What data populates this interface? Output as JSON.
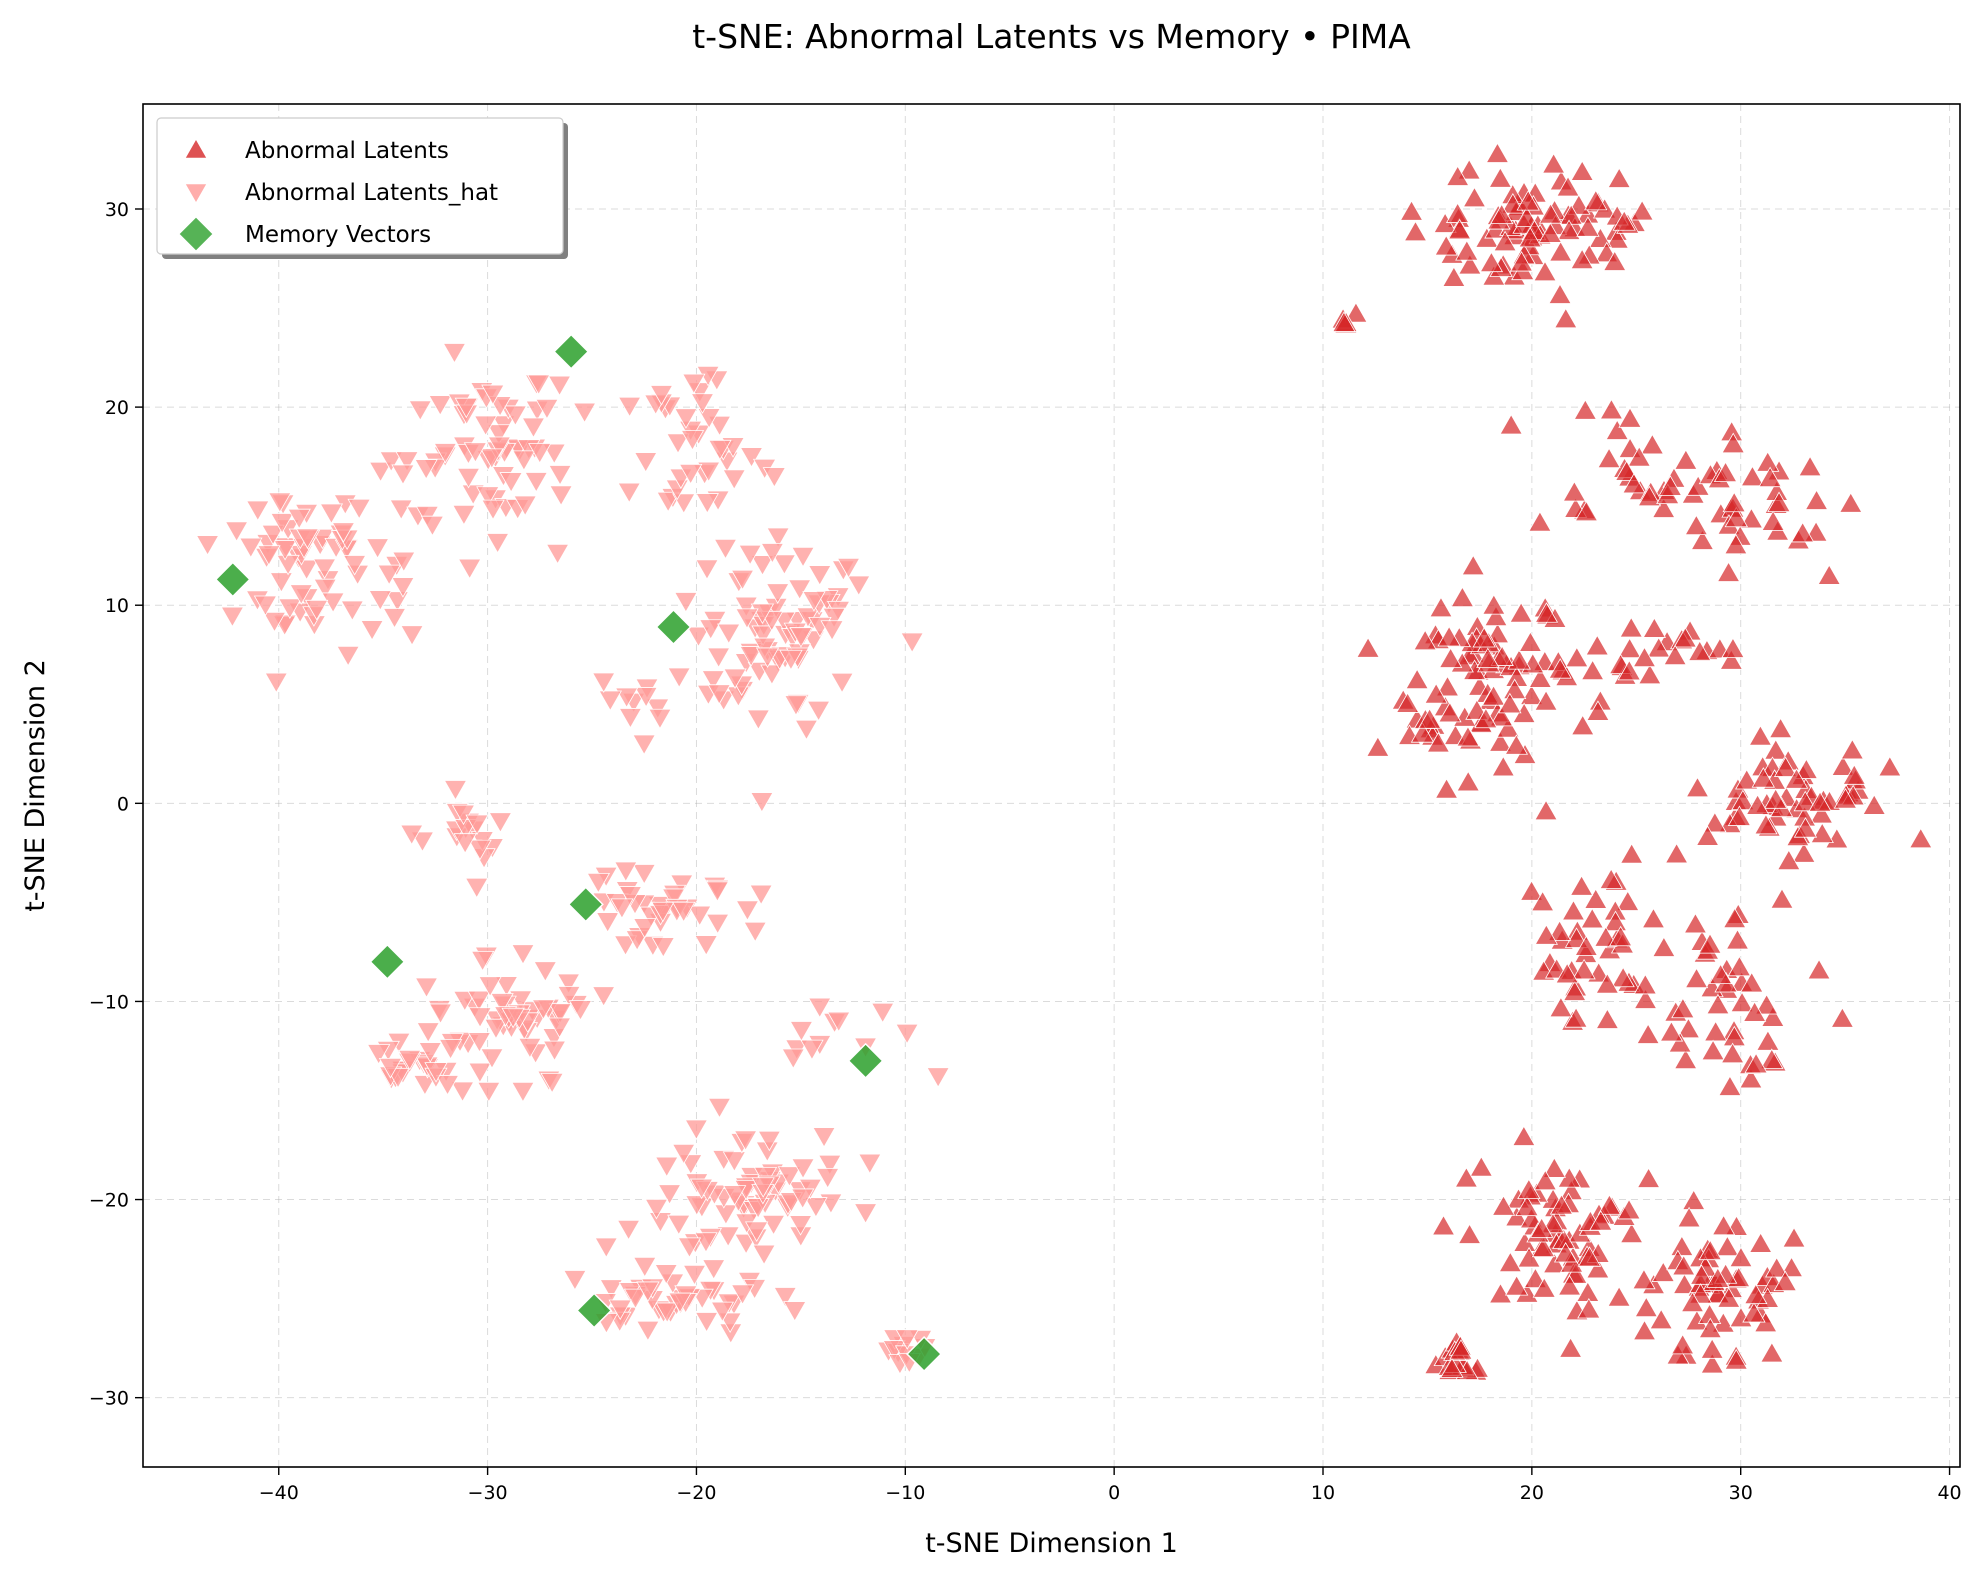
{
  "chart_data": {
    "type": "scatter",
    "title": "t-SNE: Abnormal Latents vs Memory • PIMA",
    "xlabel": "t-SNE Dimension 1",
    "ylabel": "t-SNE Dimension 2",
    "xlim": [
      -46.5,
      40.5
    ],
    "ylim": [
      -33.5,
      35.3
    ],
    "xticks": [
      -40,
      -30,
      -20,
      -10,
      0,
      10,
      20,
      30,
      40
    ],
    "yticks": [
      -30,
      -20,
      -10,
      0,
      10,
      20,
      30
    ],
    "grid": true,
    "legend_position": "upper-left",
    "series": [
      {
        "name": "Abnormal Latents",
        "marker": "triangle-up",
        "color": "#d62728",
        "clusters": [
          {
            "center": [
              20,
              29
            ],
            "spread": [
              3.5,
              1.8
            ],
            "count": 90
          },
          {
            "center": [
              11,
              24.5
            ],
            "spread": [
              0.6,
              0.6
            ],
            "count": 5
          },
          {
            "center": [
              24.5,
              17
            ],
            "spread": [
              3.0,
              2.5
            ],
            "count": 28
          },
          {
            "center": [
              31,
              15
            ],
            "spread": [
              2.5,
              2.5
            ],
            "count": 35
          },
          {
            "center": [
              18,
              6
            ],
            "spread": [
              3.0,
              3.2
            ],
            "count": 95
          },
          {
            "center": [
              26,
              7.5
            ],
            "spread": [
              3.0,
              1.2
            ],
            "count": 22
          },
          {
            "center": [
              33,
              0
            ],
            "spread": [
              3.0,
              2.0
            ],
            "count": 60
          },
          {
            "center": [
              23,
              -7
            ],
            "spread": [
              2.5,
              2.5
            ],
            "count": 45
          },
          {
            "center": [
              29,
              -10
            ],
            "spread": [
              2.5,
              3.0
            ],
            "count": 45
          },
          {
            "center": [
              21,
              -22
            ],
            "spread": [
              2.5,
              2.8
            ],
            "count": 70
          },
          {
            "center": [
              28.5,
              -24
            ],
            "spread": [
              2.8,
              2.8
            ],
            "count": 65
          },
          {
            "center": [
              16,
              -28
            ],
            "spread": [
              1.0,
              1.3
            ],
            "count": 18
          }
        ]
      },
      {
        "name": "Abnormal Latents_hat",
        "marker": "triangle-down",
        "color": "#ff9896",
        "clusters": [
          {
            "center": [
              -38,
              12
            ],
            "spread": [
              3.0,
              3.0
            ],
            "count": 75
          },
          {
            "center": [
              -30,
              18
            ],
            "spread": [
              3.0,
              2.8
            ],
            "count": 65
          },
          {
            "center": [
              -20,
              18
            ],
            "spread": [
              2.5,
              2.5
            ],
            "count": 35
          },
          {
            "center": [
              -16,
              9
            ],
            "spread": [
              2.8,
              3.5
            ],
            "count": 85
          },
          {
            "center": [
              -22,
              5
            ],
            "spread": [
              2.0,
              1.5
            ],
            "count": 12
          },
          {
            "center": [
              -31,
              -1
            ],
            "spread": [
              1.5,
              1.0
            ],
            "count": 18
          },
          {
            "center": [
              -22,
              -5
            ],
            "spread": [
              3.0,
              1.3
            ],
            "count": 40
          },
          {
            "center": [
              -29,
              -11
            ],
            "spread": [
              3.2,
              2.0
            ],
            "count": 60
          },
          {
            "center": [
              -33.5,
              -13.5
            ],
            "spread": [
              1.5,
              0.7
            ],
            "count": 22
          },
          {
            "center": [
              -17.5,
              -20
            ],
            "spread": [
              3.5,
              2.2
            ],
            "count": 75
          },
          {
            "center": [
              -21,
              -25
            ],
            "spread": [
              3.0,
              1.0
            ],
            "count": 45
          },
          {
            "center": [
              -14,
              -11.5
            ],
            "spread": [
              2.5,
              1.0
            ],
            "count": 12
          },
          {
            "center": [
              -10.5,
              -27.5
            ],
            "spread": [
              0.8,
              0.5
            ],
            "count": 12
          }
        ]
      },
      {
        "name": "Memory Vectors",
        "marker": "diamond",
        "color": "#2ca02c",
        "points": [
          [
            -42.2,
            11.3
          ],
          [
            -26,
            22.8
          ],
          [
            -21.1,
            8.9
          ],
          [
            -25.3,
            -5.1
          ],
          [
            -34.8,
            -8
          ],
          [
            -11.9,
            -13
          ],
          [
            -24.9,
            -25.6
          ],
          [
            -9.1,
            -27.8
          ]
        ]
      }
    ]
  }
}
